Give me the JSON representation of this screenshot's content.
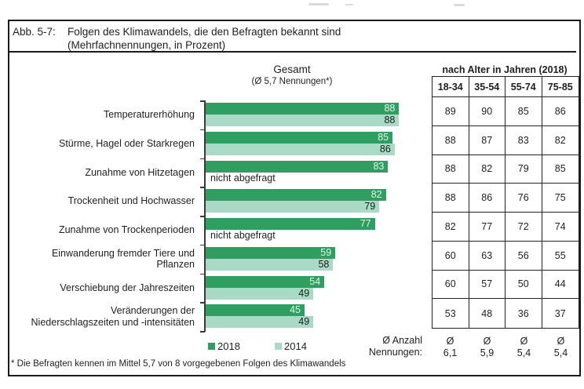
{
  "figure": {
    "title_label": "Abb. 5-7:",
    "title_line1": "Folgen des Klimawandels, die den Befragten bekannt sind",
    "title_line2": "(Mehrfachnennungen, in Prozent)",
    "footnote": "* Die Befragten kennen im Mittel 5,7 von 8 vorgegebenen Folgen des Klimawandels"
  },
  "chart_data": {
    "type": "bar",
    "orientation": "horizontal",
    "title": "Gesamt",
    "subtitle": "(Ø 5,7 Nennungen*)",
    "xlim": [
      0,
      100
    ],
    "unit": "Prozent (Mehrfachnennungen)",
    "grid": false,
    "legend_position": "bottom",
    "categories": [
      {
        "lines": [
          "Temperaturerhöhung"
        ]
      },
      {
        "lines": [
          "Stürme, Hagel oder Starkregen"
        ]
      },
      {
        "lines": [
          "Zunahme von Hitzetagen"
        ]
      },
      {
        "lines": [
          "Trockenheit und Hochwasser"
        ]
      },
      {
        "lines": [
          "Zunahme von Trockenperioden"
        ]
      },
      {
        "lines": [
          "Einwanderung fremder Tiere und",
          "Pflanzen"
        ]
      },
      {
        "lines": [
          "Verschiebung der Jahreszeiten"
        ]
      },
      {
        "lines": [
          "Veränderungen der",
          "Niederschlagszeiten und -intensitäten"
        ]
      }
    ],
    "series": [
      {
        "name": "2018",
        "color": "#2F9E60",
        "label_color": "#E2F5E6",
        "values": [
          88,
          85,
          83,
          82,
          77,
          59,
          54,
          45
        ]
      },
      {
        "name": "2014",
        "color": "#A9DAC6",
        "label_color": "#1a1a1a",
        "values": [
          88,
          86,
          null,
          79,
          null,
          58,
          49,
          49
        ]
      }
    ],
    "missing_label": "nicht abgefragt"
  },
  "age_table": {
    "header": "nach Alter in Jahren (2018)",
    "columns": [
      "18-34",
      "35-54",
      "55-74",
      "75-85"
    ],
    "rows": [
      [
        89,
        90,
        85,
        86
      ],
      [
        88,
        87,
        83,
        82
      ],
      [
        88,
        82,
        79,
        85
      ],
      [
        88,
        86,
        76,
        75
      ],
      [
        82,
        77,
        72,
        74
      ],
      [
        60,
        63,
        56,
        55
      ],
      [
        60,
        57,
        50,
        44
      ],
      [
        53,
        48,
        36,
        37
      ]
    ],
    "avg_caption_lines": [
      "Ø Anzahl",
      "Nennungen:"
    ],
    "avg_symbol": "Ø",
    "avg_values": [
      "6,1",
      "5,9",
      "5,4",
      "5,4"
    ]
  }
}
